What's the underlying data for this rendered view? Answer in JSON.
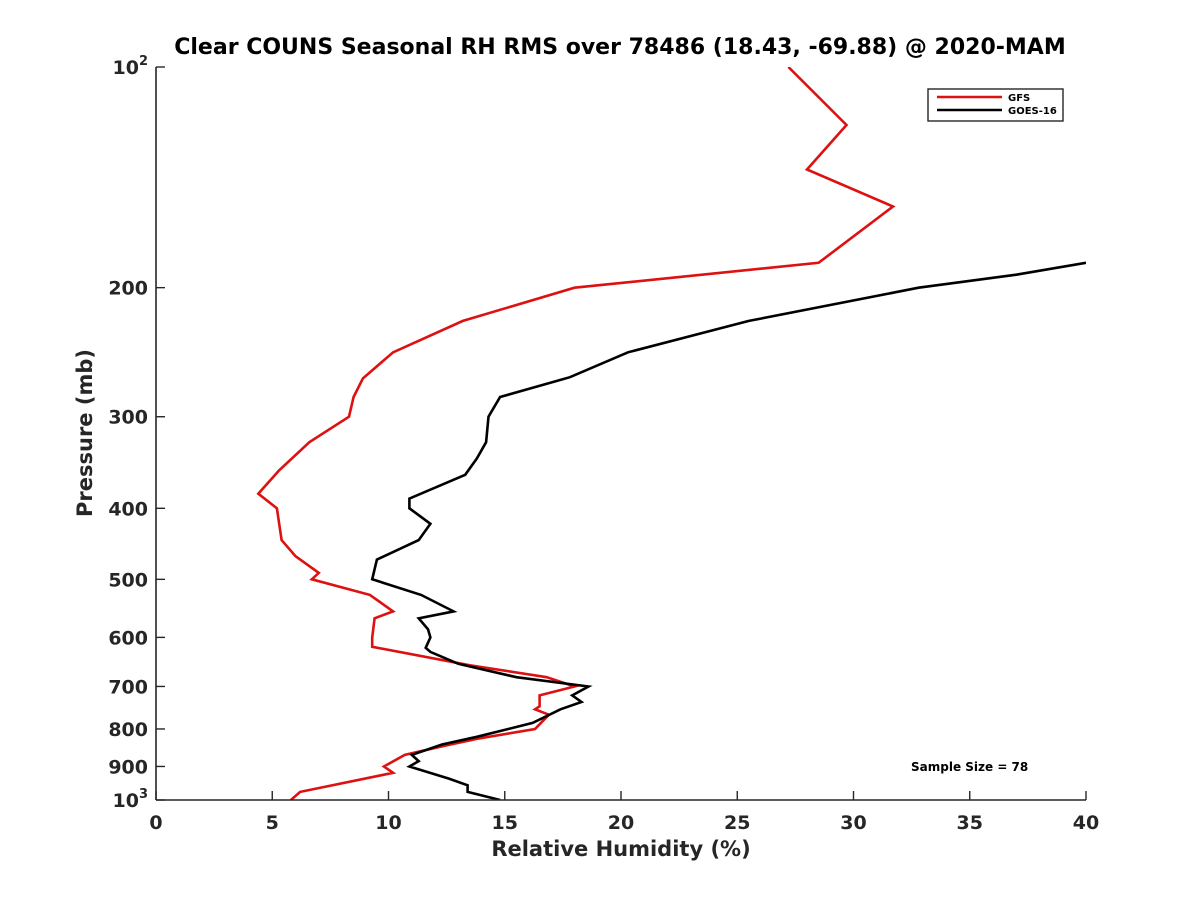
{
  "chart_data": {
    "type": "line",
    "title": "Clear COUNS Seasonal RH RMS over 78486 (18.43, -69.88) @ 2020-MAM",
    "xlabel": "Relative Humidity (%)",
    "ylabel": "Pressure (mb)",
    "xlim": [
      0,
      40
    ],
    "ylim": [
      100,
      1000
    ],
    "yscale": "log",
    "y_reversed": true,
    "grid": false,
    "legend_position": "top-right",
    "xticks": [
      {
        "value": 0,
        "label": "0"
      },
      {
        "value": 5,
        "label": "5"
      },
      {
        "value": 10,
        "label": "10"
      },
      {
        "value": 15,
        "label": "15"
      },
      {
        "value": 20,
        "label": "20"
      },
      {
        "value": 25,
        "label": "25"
      },
      {
        "value": 30,
        "label": "30"
      },
      {
        "value": 35,
        "label": "35"
      },
      {
        "value": 40,
        "label": "40"
      }
    ],
    "yticks": [
      {
        "value": 100,
        "base": "10",
        "exp": "2"
      },
      {
        "value": 200,
        "label": "200"
      },
      {
        "value": 300,
        "label": "300"
      },
      {
        "value": 400,
        "label": "400"
      },
      {
        "value": 500,
        "label": "500"
      },
      {
        "value": 600,
        "label": "600"
      },
      {
        "value": 700,
        "label": "700"
      },
      {
        "value": 800,
        "label": "800"
      },
      {
        "value": 900,
        "label": "900"
      },
      {
        "value": 1000,
        "base": "10",
        "exp": "3"
      }
    ],
    "series": [
      {
        "name": "GFS",
        "color": "#dd1111",
        "points": [
          [
            27.2,
            100
          ],
          [
            29.7,
            120
          ],
          [
            28.0,
            138
          ],
          [
            31.7,
            155
          ],
          [
            28.5,
            185
          ],
          [
            18.0,
            200
          ],
          [
            13.2,
            222
          ],
          [
            10.2,
            245
          ],
          [
            8.9,
            266
          ],
          [
            8.5,
            282
          ],
          [
            8.3,
            300
          ],
          [
            6.6,
            325
          ],
          [
            5.3,
            355
          ],
          [
            4.4,
            382
          ],
          [
            5.2,
            400
          ],
          [
            5.4,
            442
          ],
          [
            6.0,
            465
          ],
          [
            7.0,
            490
          ],
          [
            6.7,
            500
          ],
          [
            9.2,
            525
          ],
          [
            10.2,
            553
          ],
          [
            9.4,
            565
          ],
          [
            9.3,
            600
          ],
          [
            9.3,
            618
          ],
          [
            13.5,
            655
          ],
          [
            16.8,
            680
          ],
          [
            18.0,
            700
          ],
          [
            16.5,
            720
          ],
          [
            16.5,
            745
          ],
          [
            16.3,
            752
          ],
          [
            16.9,
            765
          ],
          [
            16.3,
            800
          ],
          [
            13.8,
            825
          ],
          [
            12.5,
            842
          ],
          [
            10.7,
            868
          ],
          [
            9.8,
            900
          ],
          [
            10.2,
            918
          ],
          [
            9.7,
            925
          ],
          [
            6.2,
            975
          ],
          [
            5.8,
            1000
          ]
        ]
      },
      {
        "name": "GOES-16",
        "color": "#000000",
        "points": [
          [
            40.0,
            185
          ],
          [
            37.0,
            192
          ],
          [
            32.8,
            200
          ],
          [
            25.5,
            222
          ],
          [
            20.3,
            245
          ],
          [
            17.8,
            265
          ],
          [
            14.8,
            282
          ],
          [
            14.3,
            300
          ],
          [
            14.2,
            325
          ],
          [
            13.8,
            342
          ],
          [
            13.3,
            360
          ],
          [
            10.9,
            388
          ],
          [
            10.9,
            400
          ],
          [
            11.8,
            420
          ],
          [
            11.3,
            442
          ],
          [
            9.5,
            470
          ],
          [
            9.3,
            500
          ],
          [
            11.4,
            525
          ],
          [
            12.8,
            553
          ],
          [
            11.3,
            565
          ],
          [
            11.7,
            585
          ],
          [
            11.8,
            600
          ],
          [
            11.6,
            620
          ],
          [
            11.8,
            628
          ],
          [
            13.0,
            652
          ],
          [
            15.5,
            680
          ],
          [
            18.6,
            700
          ],
          [
            17.9,
            720
          ],
          [
            18.3,
            735
          ],
          [
            17.4,
            752
          ],
          [
            16.2,
            785
          ],
          [
            13.8,
            820
          ],
          [
            12.3,
            840
          ],
          [
            11.0,
            868
          ],
          [
            11.3,
            885
          ],
          [
            10.9,
            900
          ],
          [
            12.6,
            935
          ],
          [
            13.4,
            955
          ],
          [
            13.4,
            975
          ],
          [
            14.8,
            1000
          ]
        ]
      }
    ],
    "annotations": [
      {
        "text": "Sample Size = 78"
      }
    ]
  }
}
